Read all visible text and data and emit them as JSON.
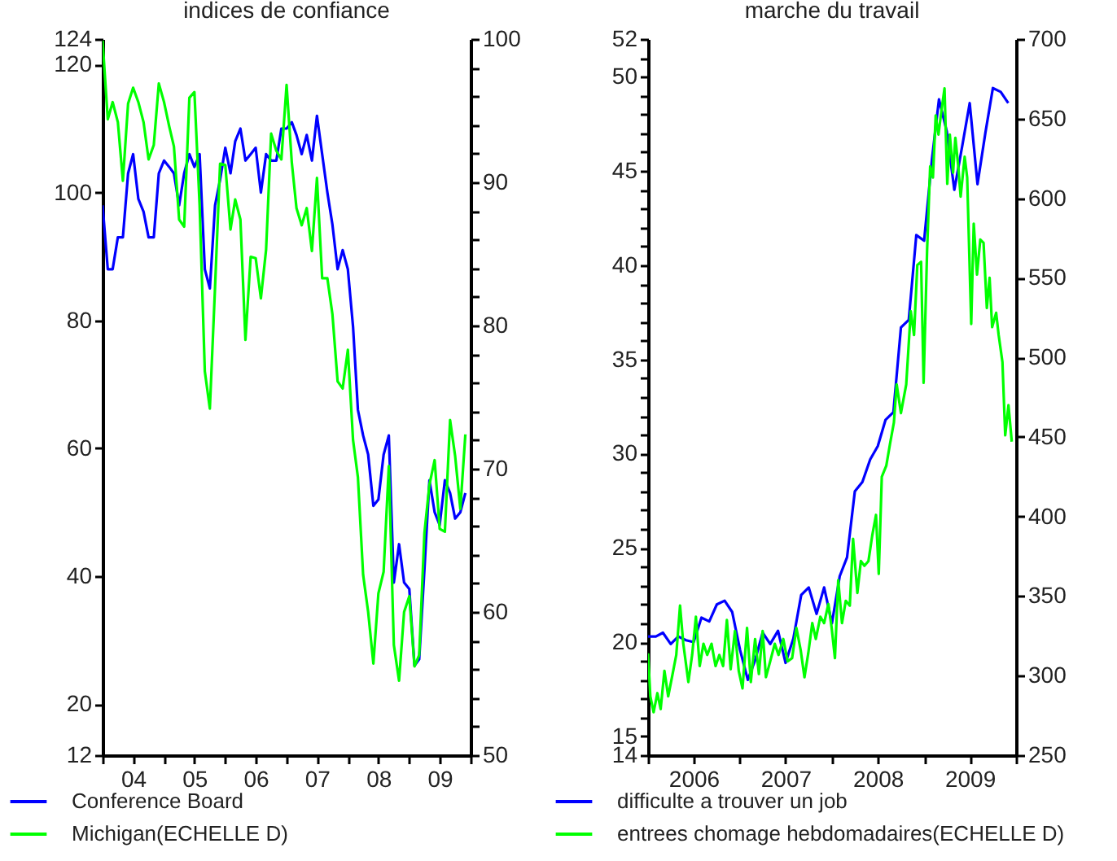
{
  "chart_data": [
    {
      "type": "line",
      "title": "indices de confiance",
      "x": [
        "2004-01",
        "2004-02",
        "2004-03",
        "2004-04",
        "2004-05",
        "2004-06",
        "2004-07",
        "2004-08",
        "2004-09",
        "2004-10",
        "2004-11",
        "2004-12",
        "2005-01",
        "2005-02",
        "2005-03",
        "2005-04",
        "2005-05",
        "2005-06",
        "2005-07",
        "2005-08",
        "2005-09",
        "2005-10",
        "2005-11",
        "2005-12",
        "2006-01",
        "2006-02",
        "2006-03",
        "2006-04",
        "2006-05",
        "2006-06",
        "2006-07",
        "2006-08",
        "2006-09",
        "2006-10",
        "2006-11",
        "2006-12",
        "2007-01",
        "2007-02",
        "2007-03",
        "2007-04",
        "2007-05",
        "2007-06",
        "2007-07",
        "2007-08",
        "2007-09",
        "2007-10",
        "2007-11",
        "2007-12",
        "2008-01",
        "2008-02",
        "2008-03",
        "2008-04",
        "2008-05",
        "2008-06",
        "2008-07",
        "2008-08",
        "2008-09",
        "2008-10",
        "2008-11",
        "2008-12",
        "2009-01",
        "2009-02",
        "2009-03",
        "2009-04",
        "2009-05",
        "2009-06",
        "2009-07",
        "2009-08",
        "2009-09",
        "2009-10",
        "2009-11",
        "2009-12"
      ],
      "series": [
        {
          "name": "Conference Board",
          "color": "#0000ff",
          "values": [
            98,
            88,
            88,
            93,
            93,
            103,
            106,
            99,
            97,
            93,
            93,
            103,
            105,
            104,
            103,
            98,
            103,
            106,
            104,
            106,
            88,
            85,
            98,
            102,
            107,
            103,
            108,
            110,
            105,
            106,
            107,
            100,
            106,
            105,
            105,
            110,
            110,
            111,
            109,
            106,
            109,
            105,
            112,
            106,
            100,
            95,
            88,
            91,
            88,
            79,
            66,
            62,
            59,
            51,
            52,
            59,
            62,
            39,
            45,
            39,
            38,
            26,
            27,
            41,
            55,
            50,
            48,
            55,
            53,
            49,
            50,
            53
          ]
        },
        {
          "name": "Michigan(ECHELLE D)",
          "color": "#00ff00",
          "axis": "y2",
          "values": [
            99.9,
            94.4,
            95.6,
            94.2,
            90.1,
            95.5,
            96.6,
            95.6,
            94.2,
            91.6,
            92.6,
            96.9,
            95.6,
            93.9,
            92.5,
            87.4,
            86.9,
            95.9,
            96.3,
            88.4,
            76.8,
            74.2,
            82.7,
            91.3,
            91.2,
            86.7,
            88.8,
            87.4,
            79,
            84.8,
            84.7,
            81.9,
            85.3,
            93.4,
            92.2,
            91.6,
            96.8,
            91.4,
            88.2,
            87,
            88.2,
            85.2,
            90.3,
            83.3,
            83.3,
            80.8,
            76.1,
            75.6,
            78.3,
            72,
            69.4,
            62.6,
            60,
            56.4,
            61.3,
            62.8,
            70.2,
            57.7,
            55.2,
            60,
            61.1,
            56.2,
            57,
            65.5,
            68.9,
            70.6,
            65.8,
            65.6,
            73.4,
            70.9,
            67.2,
            72.4
          ]
        }
      ],
      "xlim": [
        "2004",
        "2010"
      ],
      "xticks": [
        {
          "value": "2004",
          "label": null
        },
        {
          "value": "2004-07",
          "label": "04"
        },
        {
          "value": "2005",
          "label": null
        },
        {
          "value": "2005-07",
          "label": "05"
        },
        {
          "value": "2006",
          "label": null
        },
        {
          "value": "2006-07",
          "label": "06"
        },
        {
          "value": "2007",
          "label": null
        },
        {
          "value": "2007-07",
          "label": "07"
        },
        {
          "value": "2008",
          "label": null
        },
        {
          "value": "2008-07",
          "label": "08"
        },
        {
          "value": "2009",
          "label": null
        },
        {
          "value": "2009-07",
          "label": "09"
        },
        {
          "value": "2010",
          "label": null
        }
      ],
      "ylim": [
        12,
        124
      ],
      "yticks": [
        12,
        20,
        40,
        60,
        80,
        100,
        120,
        124
      ],
      "y2lim": [
        50,
        100
      ],
      "y2ticks": [
        50,
        {
          "value": 52,
          "label": null
        },
        {
          "value": 54,
          "label": null
        },
        {
          "value": 56,
          "label": null
        },
        {
          "value": 58,
          "label": null
        },
        60,
        {
          "value": 62,
          "label": null
        },
        {
          "value": 64,
          "label": null
        },
        {
          "value": 66,
          "label": null
        },
        {
          "value": 68,
          "label": null
        },
        70,
        {
          "value": 72,
          "label": null
        },
        {
          "value": 74,
          "label": null
        },
        {
          "value": 76,
          "label": null
        },
        {
          "value": 78,
          "label": null
        },
        80,
        {
          "value": 82,
          "label": null
        },
        {
          "value": 84,
          "label": null
        },
        {
          "value": 86,
          "label": null
        },
        {
          "value": 88,
          "label": null
        },
        90,
        {
          "value": 92,
          "label": null
        },
        {
          "value": 94,
          "label": null
        },
        {
          "value": 96,
          "label": null
        },
        {
          "value": 98,
          "label": null
        },
        100
      ],
      "legend": "bottom left"
    },
    {
      "type": "line",
      "title": "marche du travail",
      "series": [
        {
          "name": "difficulte a trouver un job",
          "color": "#0000ff",
          "x": [
            "2006-01",
            "2006-02",
            "2006-03",
            "2006-04",
            "2006-05",
            "2006-06",
            "2006-07",
            "2006-08",
            "2006-09",
            "2006-10",
            "2006-11",
            "2006-12",
            "2007-01",
            "2007-02",
            "2007-03",
            "2007-04",
            "2007-05",
            "2007-06",
            "2007-07",
            "2007-08",
            "2007-09",
            "2007-10",
            "2007-11",
            "2007-12",
            "2008-01",
            "2008-02",
            "2008-03",
            "2008-04",
            "2008-05",
            "2008-06",
            "2008-07",
            "2008-08",
            "2008-09",
            "2008-10",
            "2008-11",
            "2008-12",
            "2009-01",
            "2009-02",
            "2009-03",
            "2009-04",
            "2009-05",
            "2009-06",
            "2009-07",
            "2009-08",
            "2009-09",
            "2009-10",
            "2009-11",
            "2009-12"
          ],
          "values": [
            20.3,
            20.3,
            20.5,
            19.9,
            20.3,
            20.1,
            20,
            21.3,
            21.1,
            22,
            22.2,
            21.6,
            19.6,
            18,
            19,
            20.5,
            19.9,
            20.6,
            18.9,
            20.2,
            22.5,
            22.9,
            21.5,
            22.9,
            21,
            23.5,
            24.5,
            28,
            28.5,
            29.7,
            30.4,
            31.8,
            32.2,
            36.7,
            37.1,
            41.6,
            41.3,
            45.6,
            48.8,
            47.1,
            44,
            46.3,
            48.6,
            44.3,
            47,
            49.4,
            49.2,
            48.6
          ]
        },
        {
          "name": "entrees chomage hebdomadaires(ECHELLE D)",
          "color": "#00ff00",
          "axis": "y2",
          "x": [
            "2006-01-01",
            "2006-01-10",
            "2006-01-23",
            "2006-02-07",
            "2006-02-20",
            "2006-03-07",
            "2006-03-22",
            "2006-04-06",
            "2006-04-23",
            "2006-05-08",
            "2006-05-21",
            "2006-06-10",
            "2006-06-25",
            "2006-07-10",
            "2006-07-25",
            "2006-08-09",
            "2006-08-24",
            "2006-09-10",
            "2006-09-26",
            "2006-10-11",
            "2006-10-26",
            "2006-11-10",
            "2006-11-25",
            "2006-12-12",
            "2006-12-27",
            "2007-01-11",
            "2007-01-29",
            "2007-02-13",
            "2007-03-02",
            "2007-03-17",
            "2007-04-01",
            "2007-04-14",
            "2007-05-01",
            "2007-05-19",
            "2007-06-03",
            "2007-06-22",
            "2007-07-09",
            "2007-07-27",
            "2007-08-13",
            "2007-08-30",
            "2007-09-14",
            "2007-09-29",
            "2007-10-15",
            "2007-10-29",
            "2007-11-16",
            "2007-12-01",
            "2007-12-18",
            "2007-12-31",
            "2008-01-13",
            "2008-01-26",
            "2008-02-10",
            "2008-02-25",
            "2008-03-12",
            "2008-03-25",
            "2008-04-11",
            "2008-04-25",
            "2008-05-09",
            "2008-05-25",
            "2008-06-09",
            "2008-06-24",
            "2008-07-05",
            "2008-07-17",
            "2008-08-04",
            "2008-08-19",
            "2008-09-03",
            "2008-09-14",
            "2008-10-01",
            "2008-10-22",
            "2008-11-09",
            "2008-11-22",
            "2008-12-05",
            "2008-12-20",
            "2008-12-30",
            "2009-01-13",
            "2009-01-25",
            "2009-02-05",
            "2009-02-16",
            "2009-02-27",
            "2009-03-10",
            "2009-03-23",
            "2009-04-03",
            "2009-04-13",
            "2009-04-26",
            "2009-05-05",
            "2009-05-16",
            "2009-05-26",
            "2009-06-11",
            "2009-06-21",
            "2009-07-07",
            "2009-07-17",
            "2009-07-30",
            "2009-08-12",
            "2009-08-25",
            "2009-09-07",
            "2009-09-18",
            "2009-09-28",
            "2009-10-14",
            "2009-10-24",
            "2009-11-08",
            "2009-11-19",
            "2009-12-02",
            "2009-12-15"
          ],
          "values": [
            314,
            287,
            277,
            289,
            279,
            303,
            287,
            299,
            313,
            344,
            320,
            296,
            313,
            337,
            306,
            320,
            313,
            320,
            306,
            313,
            306,
            335,
            304,
            328,
            303,
            292,
            330,
            296,
            323,
            301,
            328,
            299,
            309,
            320,
            313,
            323,
            309,
            311,
            330,
            316,
            299,
            314,
            333,
            323,
            337,
            333,
            345,
            330,
            311,
            360,
            333,
            347,
            344,
            386,
            352,
            372,
            369,
            372,
            388,
            401,
            364,
            425,
            432,
            446,
            459,
            483,
            465,
            483,
            529,
            514,
            558,
            560,
            484,
            568,
            620,
            613,
            652,
            640,
            654,
            669,
            609,
            640,
            616,
            638,
            621,
            601,
            626,
            613,
            521,
            584,
            552,
            574,
            572,
            531,
            550,
            519,
            528,
            514,
            497,
            451,
            470,
            447
          ]
        }
      ],
      "xlim": [
        "2006",
        "2010"
      ],
      "xticks": [
        {
          "value": "2006",
          "label": null
        },
        {
          "value": "2006-07",
          "label": "2006"
        },
        {
          "value": "2007",
          "label": null
        },
        {
          "value": "2007-07",
          "label": "2007"
        },
        {
          "value": "2008",
          "label": null
        },
        {
          "value": "2008-07",
          "label": "2008"
        },
        {
          "value": "2009",
          "label": null
        },
        {
          "value": "2009-07",
          "label": "2009"
        },
        {
          "value": "2010",
          "label": null
        }
      ],
      "ylim": [
        14,
        52
      ],
      "yticks": [
        14,
        15,
        {
          "value": 16,
          "label": null
        },
        {
          "value": 17,
          "label": null
        },
        {
          "value": 18,
          "label": null
        },
        {
          "value": 19,
          "label": null
        },
        20,
        {
          "value": 21,
          "label": null
        },
        {
          "value": 22,
          "label": null
        },
        {
          "value": 23,
          "label": null
        },
        {
          "value": 24,
          "label": null
        },
        25,
        {
          "value": 26,
          "label": null
        },
        {
          "value": 27,
          "label": null
        },
        {
          "value": 28,
          "label": null
        },
        {
          "value": 29,
          "label": null
        },
        30,
        {
          "value": 31,
          "label": null
        },
        {
          "value": 32,
          "label": null
        },
        {
          "value": 33,
          "label": null
        },
        {
          "value": 34,
          "label": null
        },
        35,
        {
          "value": 36,
          "label": null
        },
        {
          "value": 37,
          "label": null
        },
        {
          "value": 38,
          "label": null
        },
        {
          "value": 39,
          "label": null
        },
        40,
        {
          "value": 41,
          "label": null
        },
        {
          "value": 42,
          "label": null
        },
        {
          "value": 43,
          "label": null
        },
        {
          "value": 44,
          "label": null
        },
        45,
        {
          "value": 46,
          "label": null
        },
        {
          "value": 47,
          "label": null
        },
        {
          "value": 48,
          "label": null
        },
        {
          "value": 49,
          "label": null
        },
        50,
        {
          "value": 51,
          "label": null
        },
        52
      ],
      "y2lim": [
        250,
        700
      ],
      "y2ticks": [
        250,
        300,
        350,
        400,
        450,
        500,
        550,
        600,
        650,
        700
      ],
      "legend": "bottom left"
    }
  ]
}
